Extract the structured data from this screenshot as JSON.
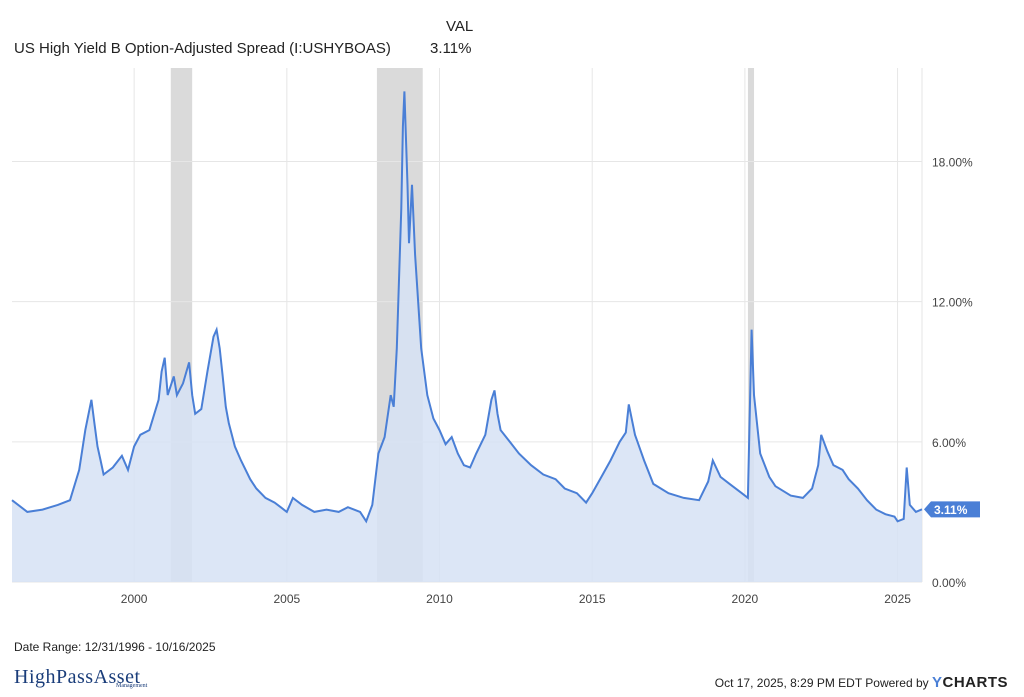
{
  "header": {
    "val_heading": "VAL",
    "series_name": "US High Yield B Option-Adjusted Spread (I:USHYBOAS)",
    "series_value": "3.11%"
  },
  "footer": {
    "date_range": "Date Range: 12/31/1996 - 10/16/2025",
    "timestamp": "Oct 17, 2025, 8:29 PM EDT Powered by",
    "brand_y": "Y",
    "brand_rest": "CHARTS",
    "logo_text": "HighPassAsset",
    "logo_sub": "Management"
  },
  "colors": {
    "line": "#4a7fd6",
    "area": "#d6e2f5",
    "recession": "#dadada",
    "grid": "#e6e6e6",
    "badge": "#4a7fd6"
  },
  "chart_data": {
    "type": "area",
    "title": "US High Yield B Option-Adjusted Spread (I:USHYBOAS)",
    "ylim": [
      0,
      22
    ],
    "xlim": [
      1996.0,
      2025.8
    ],
    "yticks": [
      0,
      6,
      12,
      18
    ],
    "ytick_labels": [
      "0.00%",
      "6.00%",
      "12.00%",
      "18.00%"
    ],
    "xticks": [
      2000,
      2005,
      2010,
      2015,
      2020,
      2025
    ],
    "xtick_labels": [
      "2000",
      "2005",
      "2010",
      "2015",
      "2020",
      "2025"
    ],
    "grid": true,
    "last_value_label": "3.11%",
    "last_value": 3.11,
    "recessions": [
      [
        2001.2,
        2001.9
      ],
      [
        2007.95,
        2009.45
      ],
      [
        2020.1,
        2020.3
      ]
    ],
    "series": [
      {
        "x": [
          1996.0,
          1996.5,
          1997.0,
          1997.5,
          1997.9,
          1998.2,
          1998.4,
          1998.6,
          1998.7,
          1998.8,
          1998.9,
          1999.0,
          1999.3,
          1999.6,
          1999.8,
          2000.0,
          2000.2,
          2000.5,
          2000.8,
          2000.9,
          2001.0,
          2001.1,
          2001.3,
          2001.4,
          2001.6,
          2001.8,
          2001.9,
          2002.0,
          2002.2,
          2002.4,
          2002.6,
          2002.7,
          2002.8,
          2002.9,
          2003.0,
          2003.1,
          2003.3,
          2003.5,
          2003.8,
          2004.0,
          2004.3,
          2004.6,
          2004.8,
          2005.0,
          2005.2,
          2005.5,
          2005.9,
          2006.3,
          2006.7,
          2007.0,
          2007.4,
          2007.6,
          2007.8,
          2008.0,
          2008.2,
          2008.4,
          2008.5,
          2008.6,
          2008.75,
          2008.8,
          2008.85,
          2008.95,
          2009.0,
          2009.1,
          2009.2,
          2009.4,
          2009.6,
          2009.8,
          2010.0,
          2010.2,
          2010.4,
          2010.6,
          2010.8,
          2011.0,
          2011.2,
          2011.5,
          2011.7,
          2011.8,
          2011.9,
          2012.0,
          2012.3,
          2012.6,
          2013.0,
          2013.4,
          2013.8,
          2014.1,
          2014.5,
          2014.8,
          2015.0,
          2015.3,
          2015.6,
          2015.9,
          2016.1,
          2016.2,
          2016.4,
          2016.7,
          2017.0,
          2017.5,
          2018.0,
          2018.5,
          2018.8,
          2018.95,
          2019.2,
          2019.5,
          2019.9,
          2020.1,
          2020.22,
          2020.3,
          2020.5,
          2020.8,
          2021.0,
          2021.5,
          2021.9,
          2022.2,
          2022.4,
          2022.5,
          2022.7,
          2022.9,
          2023.2,
          2023.4,
          2023.7,
          2024.0,
          2024.3,
          2024.6,
          2024.9,
          2025.0,
          2025.2,
          2025.3,
          2025.4,
          2025.6,
          2025.8
        ],
        "values": [
          3.5,
          3.0,
          3.1,
          3.3,
          3.5,
          4.8,
          6.5,
          7.8,
          6.8,
          5.8,
          5.2,
          4.6,
          4.9,
          5.4,
          4.8,
          5.8,
          6.3,
          6.5,
          7.8,
          9.0,
          9.6,
          8.0,
          8.8,
          8.0,
          8.5,
          9.4,
          8.0,
          7.2,
          7.4,
          9.0,
          10.5,
          10.8,
          10.0,
          8.8,
          7.5,
          6.8,
          5.8,
          5.2,
          4.4,
          4.0,
          3.6,
          3.4,
          3.2,
          3.0,
          3.6,
          3.3,
          3.0,
          3.1,
          3.0,
          3.2,
          3.0,
          2.6,
          3.3,
          5.5,
          6.2,
          8.0,
          7.5,
          10.0,
          16.0,
          19.5,
          21.0,
          17.0,
          14.5,
          17.0,
          14.0,
          10.0,
          8.0,
          7.0,
          6.5,
          5.9,
          6.2,
          5.5,
          5.0,
          4.9,
          5.5,
          6.3,
          7.8,
          8.2,
          7.2,
          6.5,
          6.0,
          5.5,
          5.0,
          4.6,
          4.4,
          4.0,
          3.8,
          3.4,
          3.8,
          4.5,
          5.2,
          6.0,
          6.4,
          7.6,
          6.3,
          5.2,
          4.2,
          3.8,
          3.6,
          3.5,
          4.3,
          5.2,
          4.5,
          4.2,
          3.8,
          3.6,
          10.8,
          8.0,
          5.5,
          4.5,
          4.1,
          3.7,
          3.6,
          4.0,
          5.0,
          6.3,
          5.6,
          5.0,
          4.8,
          4.4,
          4.0,
          3.5,
          3.1,
          2.9,
          2.8,
          2.6,
          2.7,
          4.9,
          3.3,
          3.0,
          3.11
        ]
      }
    ]
  }
}
